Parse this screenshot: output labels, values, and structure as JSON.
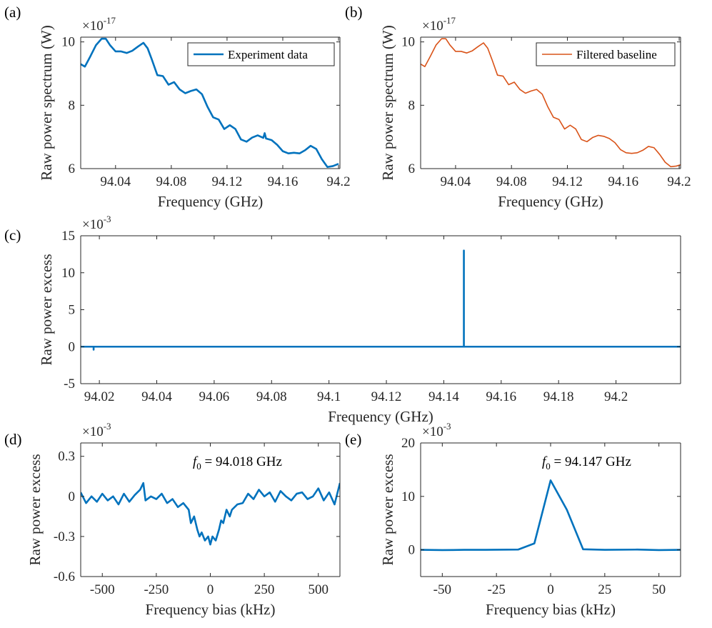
{
  "figure": {
    "panels": [
      {
        "id": "a",
        "label": "(a)"
      },
      {
        "id": "b",
        "label": "(b)"
      },
      {
        "id": "c",
        "label": "(c)"
      },
      {
        "id": "d",
        "label": "(d)"
      },
      {
        "id": "e",
        "label": "(e)"
      }
    ]
  },
  "chart_data": [
    {
      "id": "a",
      "type": "line",
      "panel_label": "(a)",
      "xlabel": "Frequency (GHz)",
      "ylabel": "Raw power spectrum (W)",
      "multiplier": {
        "base": "×10",
        "exp": "-17"
      },
      "xlim": [
        94.015,
        94.201
      ],
      "ylim": [
        6,
        10.15
      ],
      "xticks": [
        94.04,
        94.08,
        94.12,
        94.16,
        94.2
      ],
      "xtick_labels": [
        "94.04",
        "94.08",
        "94.12",
        "94.16",
        "94.2"
      ],
      "yticks": [
        6,
        8,
        10
      ],
      "ytick_labels": [
        "6",
        "8",
        "10"
      ],
      "legend": {
        "position": "top-right",
        "entries": [
          "Experiment data"
        ]
      },
      "series": [
        {
          "name": "Experiment data",
          "color": "#0072BD",
          "x": [
            94.015,
            94.018,
            94.022,
            94.026,
            94.03,
            94.033,
            94.036,
            94.04,
            94.044,
            94.048,
            94.052,
            94.056,
            94.06,
            94.063,
            94.066,
            94.07,
            94.074,
            94.078,
            94.082,
            94.086,
            94.09,
            94.094,
            94.098,
            94.102,
            94.106,
            94.11,
            94.114,
            94.118,
            94.122,
            94.126,
            94.13,
            94.134,
            94.138,
            94.142,
            94.146,
            94.147,
            94.148,
            94.152,
            94.156,
            94.16,
            94.164,
            94.168,
            94.172,
            94.176,
            94.18,
            94.184,
            94.188,
            94.192,
            94.196,
            94.2
          ],
          "y": [
            9.3,
            9.22,
            9.55,
            9.9,
            10.1,
            10.1,
            9.9,
            9.7,
            9.7,
            9.65,
            9.72,
            9.85,
            9.97,
            9.8,
            9.45,
            8.95,
            8.92,
            8.65,
            8.73,
            8.5,
            8.38,
            8.45,
            8.5,
            8.35,
            7.95,
            7.62,
            7.55,
            7.25,
            7.37,
            7.25,
            6.92,
            6.85,
            6.98,
            7.05,
            6.97,
            7.12,
            6.95,
            6.9,
            6.75,
            6.55,
            6.48,
            6.5,
            6.48,
            6.58,
            6.72,
            6.62,
            6.3,
            6.05,
            6.08,
            6.15
          ]
        }
      ]
    },
    {
      "id": "b",
      "type": "line",
      "panel_label": "(b)",
      "xlabel": "Frequency (GHz)",
      "ylabel": "Raw power spectrum (W)",
      "multiplier": {
        "base": "×10",
        "exp": "-17"
      },
      "xlim": [
        94.015,
        94.201
      ],
      "ylim": [
        6,
        10.15
      ],
      "xticks": [
        94.04,
        94.08,
        94.12,
        94.16,
        94.2
      ],
      "xtick_labels": [
        "94.04",
        "94.08",
        "94.12",
        "94.16",
        "94.2"
      ],
      "yticks": [
        6,
        8,
        10
      ],
      "ytick_labels": [
        "6",
        "8",
        "10"
      ],
      "legend": {
        "position": "top-right",
        "entries": [
          "Filtered baseline"
        ]
      },
      "series": [
        {
          "name": "Filtered baseline",
          "color": "#D95319",
          "x": [
            94.015,
            94.018,
            94.022,
            94.026,
            94.03,
            94.033,
            94.036,
            94.04,
            94.044,
            94.048,
            94.052,
            94.056,
            94.06,
            94.063,
            94.066,
            94.07,
            94.074,
            94.078,
            94.082,
            94.086,
            94.09,
            94.094,
            94.098,
            94.102,
            94.106,
            94.11,
            94.114,
            94.118,
            94.122,
            94.126,
            94.13,
            94.134,
            94.138,
            94.142,
            94.146,
            94.15,
            94.154,
            94.158,
            94.162,
            94.166,
            94.17,
            94.174,
            94.178,
            94.182,
            94.186,
            94.19,
            94.194,
            94.198,
            94.201
          ],
          "y": [
            9.3,
            9.22,
            9.55,
            9.9,
            10.1,
            10.1,
            9.9,
            9.7,
            9.7,
            9.65,
            9.72,
            9.85,
            9.97,
            9.8,
            9.45,
            8.95,
            8.92,
            8.65,
            8.73,
            8.5,
            8.38,
            8.45,
            8.5,
            8.35,
            7.95,
            7.62,
            7.55,
            7.25,
            7.37,
            7.25,
            6.92,
            6.85,
            6.98,
            7.05,
            7.02,
            6.95,
            6.82,
            6.6,
            6.5,
            6.48,
            6.5,
            6.58,
            6.7,
            6.66,
            6.45,
            6.2,
            6.06,
            6.08,
            6.12
          ]
        }
      ]
    },
    {
      "id": "c",
      "type": "line",
      "panel_label": "(c)",
      "xlabel": "Frequency (GHz)",
      "ylabel": "Raw power excess",
      "multiplier": {
        "base": "×10",
        "exp": "-3"
      },
      "xlim": [
        94.0135,
        94.2225
      ],
      "ylim": [
        -5,
        15
      ],
      "xticks": [
        94.02,
        94.04,
        94.06,
        94.08,
        94.1,
        94.12,
        94.14,
        94.16,
        94.18,
        94.2
      ],
      "xtick_labels": [
        "94.02",
        "94.04",
        "94.06",
        "94.08",
        "94.1",
        "94.12",
        "94.14",
        "94.16",
        "94.18",
        "94.2"
      ],
      "yticks": [
        -5,
        0,
        5,
        10,
        15
      ],
      "ytick_labels": [
        "-5",
        "0",
        "5",
        "10",
        "15"
      ],
      "series": [
        {
          "color": "#0072BD",
          "x": [
            94.0135,
            94.018,
            94.018,
            94.018,
            94.147,
            94.147,
            94.147,
            94.2225
          ],
          "y": [
            0,
            0,
            -0.4,
            0,
            0,
            13.0,
            0,
            0
          ]
        }
      ]
    },
    {
      "id": "d",
      "type": "line",
      "panel_label": "(d)",
      "xlabel": "Frequency bias (kHz)",
      "ylabel": "Raw power excess",
      "multiplier": {
        "base": "×10",
        "exp": "-3"
      },
      "annotation": {
        "symbol": "f",
        "subscript": "0",
        "text": " = 94.018 GHz"
      },
      "xlim": [
        -600,
        600
      ],
      "ylim": [
        -0.6,
        0.4
      ],
      "xticks": [
        -500,
        -250,
        0,
        250,
        500
      ],
      "xtick_labels": [
        "-500",
        "-250",
        "0",
        "250",
        "500"
      ],
      "yticks": [
        -0.6,
        -0.3,
        0,
        0.3
      ],
      "ytick_labels": [
        "-0.6",
        "-0.3",
        "0",
        "0.3"
      ],
      "series": [
        {
          "color": "#0072BD",
          "x": [
            -600,
            -575,
            -550,
            -525,
            -500,
            -475,
            -450,
            -425,
            -400,
            -375,
            -350,
            -325,
            -310,
            -300,
            -275,
            -250,
            -225,
            -200,
            -175,
            -150,
            -125,
            -100,
            -90,
            -75,
            -60,
            -50,
            -40,
            -25,
            -10,
            0,
            10,
            25,
            40,
            50,
            60,
            75,
            90,
            100,
            125,
            150,
            175,
            200,
            225,
            250,
            275,
            300,
            325,
            350,
            375,
            400,
            425,
            450,
            475,
            500,
            525,
            550,
            575,
            600
          ],
          "y": [
            0.03,
            -0.05,
            0.0,
            -0.04,
            0.02,
            -0.03,
            0.0,
            -0.06,
            0.02,
            -0.04,
            0.01,
            0.05,
            0.1,
            -0.03,
            0.0,
            -0.02,
            0.02,
            -0.05,
            -0.02,
            -0.08,
            -0.05,
            -0.1,
            -0.2,
            -0.15,
            -0.25,
            -0.3,
            -0.27,
            -0.33,
            -0.3,
            -0.36,
            -0.3,
            -0.33,
            -0.25,
            -0.18,
            -0.2,
            -0.1,
            -0.15,
            -0.1,
            -0.06,
            -0.05,
            0.02,
            -0.02,
            0.05,
            0.0,
            0.03,
            -0.04,
            0.04,
            0.0,
            -0.03,
            0.02,
            0.03,
            -0.02,
            0.0,
            0.06,
            -0.03,
            0.03,
            -0.06,
            0.1
          ]
        }
      ]
    },
    {
      "id": "e",
      "type": "line",
      "panel_label": "(e)",
      "xlabel": "Frequency bias (kHz)",
      "ylabel": "Raw power excess",
      "multiplier": {
        "base": "×10",
        "exp": "-3"
      },
      "annotation": {
        "symbol": "f",
        "subscript": "0",
        "text": " = 94.147 GHz"
      },
      "xlim": [
        -60,
        60
      ],
      "ylim": [
        -5,
        20
      ],
      "xticks": [
        -50,
        -25,
        0,
        25,
        50
      ],
      "xtick_labels": [
        "-50",
        "-25",
        "0",
        "25",
        "50"
      ],
      "yticks": [
        0,
        10,
        20
      ],
      "ytick_labels": [
        "0",
        "10",
        "20"
      ],
      "series": [
        {
          "color": "#0072BD",
          "x": [
            -60,
            -50,
            -40,
            -30,
            -15,
            -7.5,
            0,
            7.5,
            15,
            25,
            40,
            50,
            60
          ],
          "y": [
            0,
            -0.05,
            0.0,
            0.0,
            0.05,
            1.2,
            13.0,
            7.5,
            0.1,
            0.0,
            0.05,
            -0.05,
            0.0
          ]
        }
      ]
    }
  ]
}
